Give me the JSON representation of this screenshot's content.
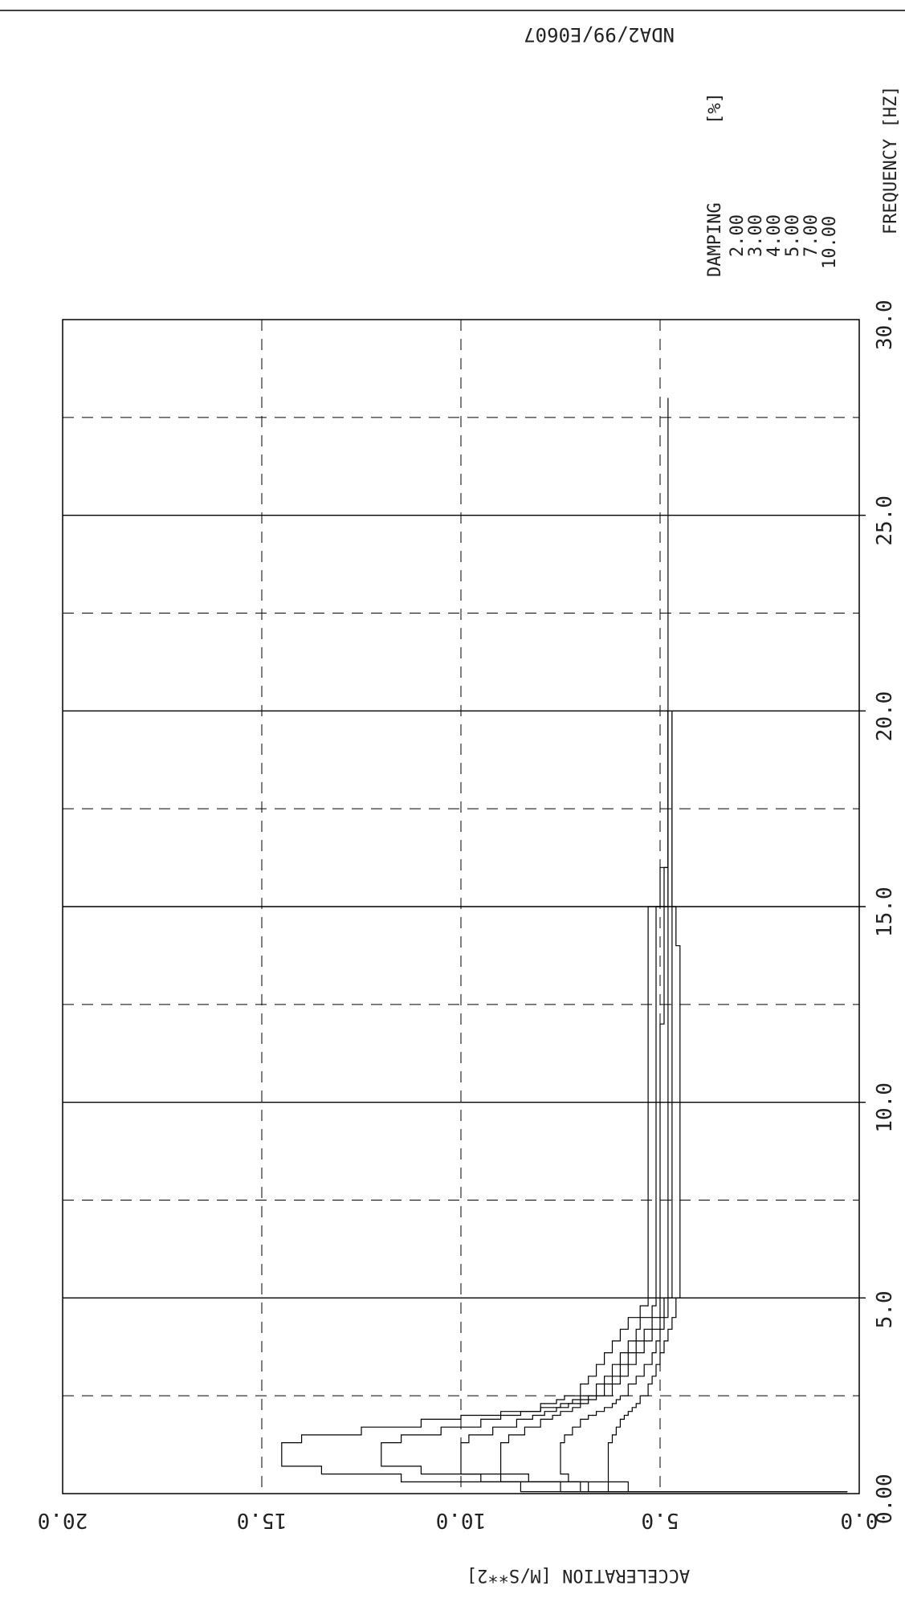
{
  "header": {
    "code": "NDA2/99/E0607"
  },
  "legend": {
    "title": "DAMPING",
    "unit": "[%]",
    "entries": [
      "2.00",
      "3.00",
      "4.00",
      "5.00",
      "7.00",
      "10.00"
    ]
  },
  "colors": {
    "line": "#000000",
    "grid": "#000000",
    "background": "#ffffff"
  },
  "chart_data": {
    "type": "line",
    "title": "",
    "xlabel": "FREQUENCY [HZ]",
    "ylabel": "ACCELERATION [M/S**2]",
    "xlim": [
      0,
      30
    ],
    "ylim": [
      0,
      20
    ],
    "x_ticks": [
      0,
      5,
      10,
      15,
      20,
      25,
      30
    ],
    "x_tick_labels": [
      "0.00",
      "5.0",
      "10.0",
      "15.0",
      "20.0",
      "25.0",
      "30.0"
    ],
    "y_ticks": [
      0,
      5,
      10,
      15,
      20
    ],
    "y_tick_labels": [
      "0.0",
      "5.0",
      "10.0",
      "15.0",
      "20.0"
    ],
    "grid": true,
    "legend_position": "top-right",
    "series": [
      {
        "name": "2.00",
        "x": [
          0.05,
          0.3,
          0.5,
          0.7,
          0.9,
          1.1,
          1.3,
          1.5,
          1.7,
          1.9,
          2.0,
          2.1,
          2.2,
          2.3,
          2.4,
          2.5,
          2.8,
          3.0,
          3.3,
          3.6,
          3.9,
          4.2,
          4.5,
          4.8,
          5.0,
          6.0,
          8.0,
          10.0,
          12.0,
          14.0,
          15.0,
          16.0,
          17.0,
          18.0,
          19.0,
          20.0,
          22.0,
          25.0,
          28.0
        ],
        "y": [
          0.3,
          8.5,
          11.5,
          13.5,
          14.5,
          14.5,
          14.5,
          14.0,
          12.5,
          11.0,
          10.0,
          9.0,
          8.0,
          8.0,
          7.6,
          7.4,
          7.0,
          6.8,
          6.6,
          6.4,
          6.2,
          6.0,
          5.8,
          5.5,
          5.3,
          5.3,
          5.3,
          5.3,
          5.3,
          5.3,
          5.3,
          5.0,
          4.8,
          4.8,
          4.8,
          4.8,
          4.8,
          4.8,
          4.8
        ]
      },
      {
        "name": "3.00",
        "x": [
          0.05,
          0.3,
          0.5,
          0.7,
          0.9,
          1.1,
          1.3,
          1.5,
          1.7,
          1.9,
          2.0,
          2.1,
          2.2,
          2.3,
          2.4,
          2.5,
          2.8,
          3.0,
          3.3,
          3.6,
          3.9,
          4.2,
          4.5,
          4.8,
          5.0,
          6.0,
          8.0,
          10.0,
          12.0,
          14.0,
          15.0,
          16.0,
          17.0,
          18.0,
          19.0,
          20.0
        ],
        "y": [
          0.3,
          7.5,
          9.5,
          11.0,
          12.0,
          12.0,
          12.0,
          11.5,
          10.5,
          9.5,
          9.0,
          8.5,
          8.0,
          7.5,
          7.2,
          7.0,
          6.6,
          6.4,
          6.2,
          6.0,
          5.8,
          5.6,
          5.5,
          5.2,
          5.1,
          5.1,
          5.1,
          5.1,
          5.1,
          5.1,
          5.1,
          4.9,
          4.8,
          4.8,
          4.8,
          4.8
        ]
      },
      {
        "name": "4.00",
        "x": [
          0.05,
          0.3,
          0.5,
          0.7,
          0.9,
          1.1,
          1.3,
          1.5,
          1.7,
          1.9,
          2.0,
          2.1,
          2.2,
          2.3,
          2.4,
          2.5,
          2.8,
          3.0,
          3.3,
          3.6,
          3.9,
          4.2,
          4.5,
          4.8,
          5.0,
          6.0,
          8.0,
          10.0,
          12.0,
          14.0,
          15.0,
          16.0,
          17.0,
          18.0,
          19.0,
          20.0
        ],
        "y": [
          0.3,
          7.0,
          9.0,
          10.0,
          10.0,
          10.0,
          10.0,
          9.8,
          9.2,
          8.6,
          8.2,
          7.9,
          7.6,
          7.3,
          7.0,
          6.8,
          6.4,
          6.2,
          6.0,
          5.8,
          5.6,
          5.4,
          5.2,
          5.0,
          5.0,
          5.0,
          5.0,
          5.0,
          5.0,
          4.9,
          4.9,
          4.8,
          4.8,
          4.8,
          4.8,
          4.8
        ]
      },
      {
        "name": "5.00",
        "x": [
          0.05,
          0.3,
          0.5,
          0.7,
          0.9,
          1.1,
          1.3,
          1.5,
          1.7,
          1.9,
          2.0,
          2.1,
          2.2,
          2.3,
          2.4,
          2.5,
          2.8,
          3.0,
          3.3,
          3.6,
          3.9,
          4.2,
          4.5,
          4.8,
          5.0,
          6.0,
          8.0,
          10.0,
          12.0,
          14.0,
          15.0,
          16.0,
          17.0,
          18.0,
          19.0,
          20.0
        ],
        "y": [
          0.3,
          6.8,
          8.3,
          9.0,
          9.0,
          9.0,
          9.0,
          8.8,
          8.4,
          8.0,
          7.7,
          7.5,
          7.2,
          7.0,
          6.8,
          6.6,
          6.2,
          6.0,
          5.8,
          5.6,
          5.4,
          5.2,
          5.0,
          4.9,
          4.9,
          4.8,
          4.8,
          4.8,
          4.8,
          4.8,
          4.8,
          4.8,
          4.8,
          4.8,
          4.8,
          4.8
        ]
      },
      {
        "name": "7.00",
        "x": [
          0.05,
          0.3,
          0.5,
          0.7,
          0.9,
          1.1,
          1.3,
          1.5,
          1.7,
          1.9,
          2.0,
          2.1,
          2.2,
          2.3,
          2.4,
          2.5,
          2.8,
          3.0,
          3.3,
          3.6,
          3.9,
          4.2,
          4.5,
          4.8,
          5.0,
          6.0,
          8.0,
          10.0,
          12.0,
          14.0,
          15.0,
          16.0,
          17.0,
          18.0,
          19.0,
          20.0
        ],
        "y": [
          0.3,
          6.3,
          7.3,
          7.5,
          7.5,
          7.5,
          7.5,
          7.4,
          7.2,
          7.0,
          6.8,
          6.6,
          6.4,
          6.2,
          6.1,
          6.0,
          5.8,
          5.6,
          5.4,
          5.2,
          5.1,
          5.0,
          4.9,
          4.8,
          4.8,
          4.7,
          4.7,
          4.7,
          4.7,
          4.7,
          4.7,
          4.7,
          4.7,
          4.7,
          4.7,
          4.7
        ]
      },
      {
        "name": "10.00",
        "x": [
          0.05,
          0.3,
          0.5,
          0.7,
          0.9,
          1.1,
          1.3,
          1.5,
          1.7,
          1.9,
          2.0,
          2.1,
          2.2,
          2.3,
          2.4,
          2.5,
          2.8,
          3.0,
          3.3,
          3.6,
          3.9,
          4.2,
          4.5,
          4.8,
          5.0,
          6.0,
          8.0,
          10.0,
          12.0,
          14.0,
          15.0,
          16.0,
          17.0,
          18.0,
          19.0,
          20.0
        ],
        "y": [
          0.3,
          5.8,
          6.3,
          6.3,
          6.3,
          6.3,
          6.3,
          6.2,
          6.1,
          6.0,
          5.9,
          5.8,
          5.7,
          5.6,
          5.5,
          5.5,
          5.3,
          5.2,
          5.1,
          5.0,
          4.9,
          4.8,
          4.7,
          4.6,
          4.6,
          4.5,
          4.5,
          4.5,
          4.5,
          4.5,
          4.6,
          4.7,
          4.7,
          4.7,
          4.7,
          4.7
        ]
      }
    ]
  }
}
